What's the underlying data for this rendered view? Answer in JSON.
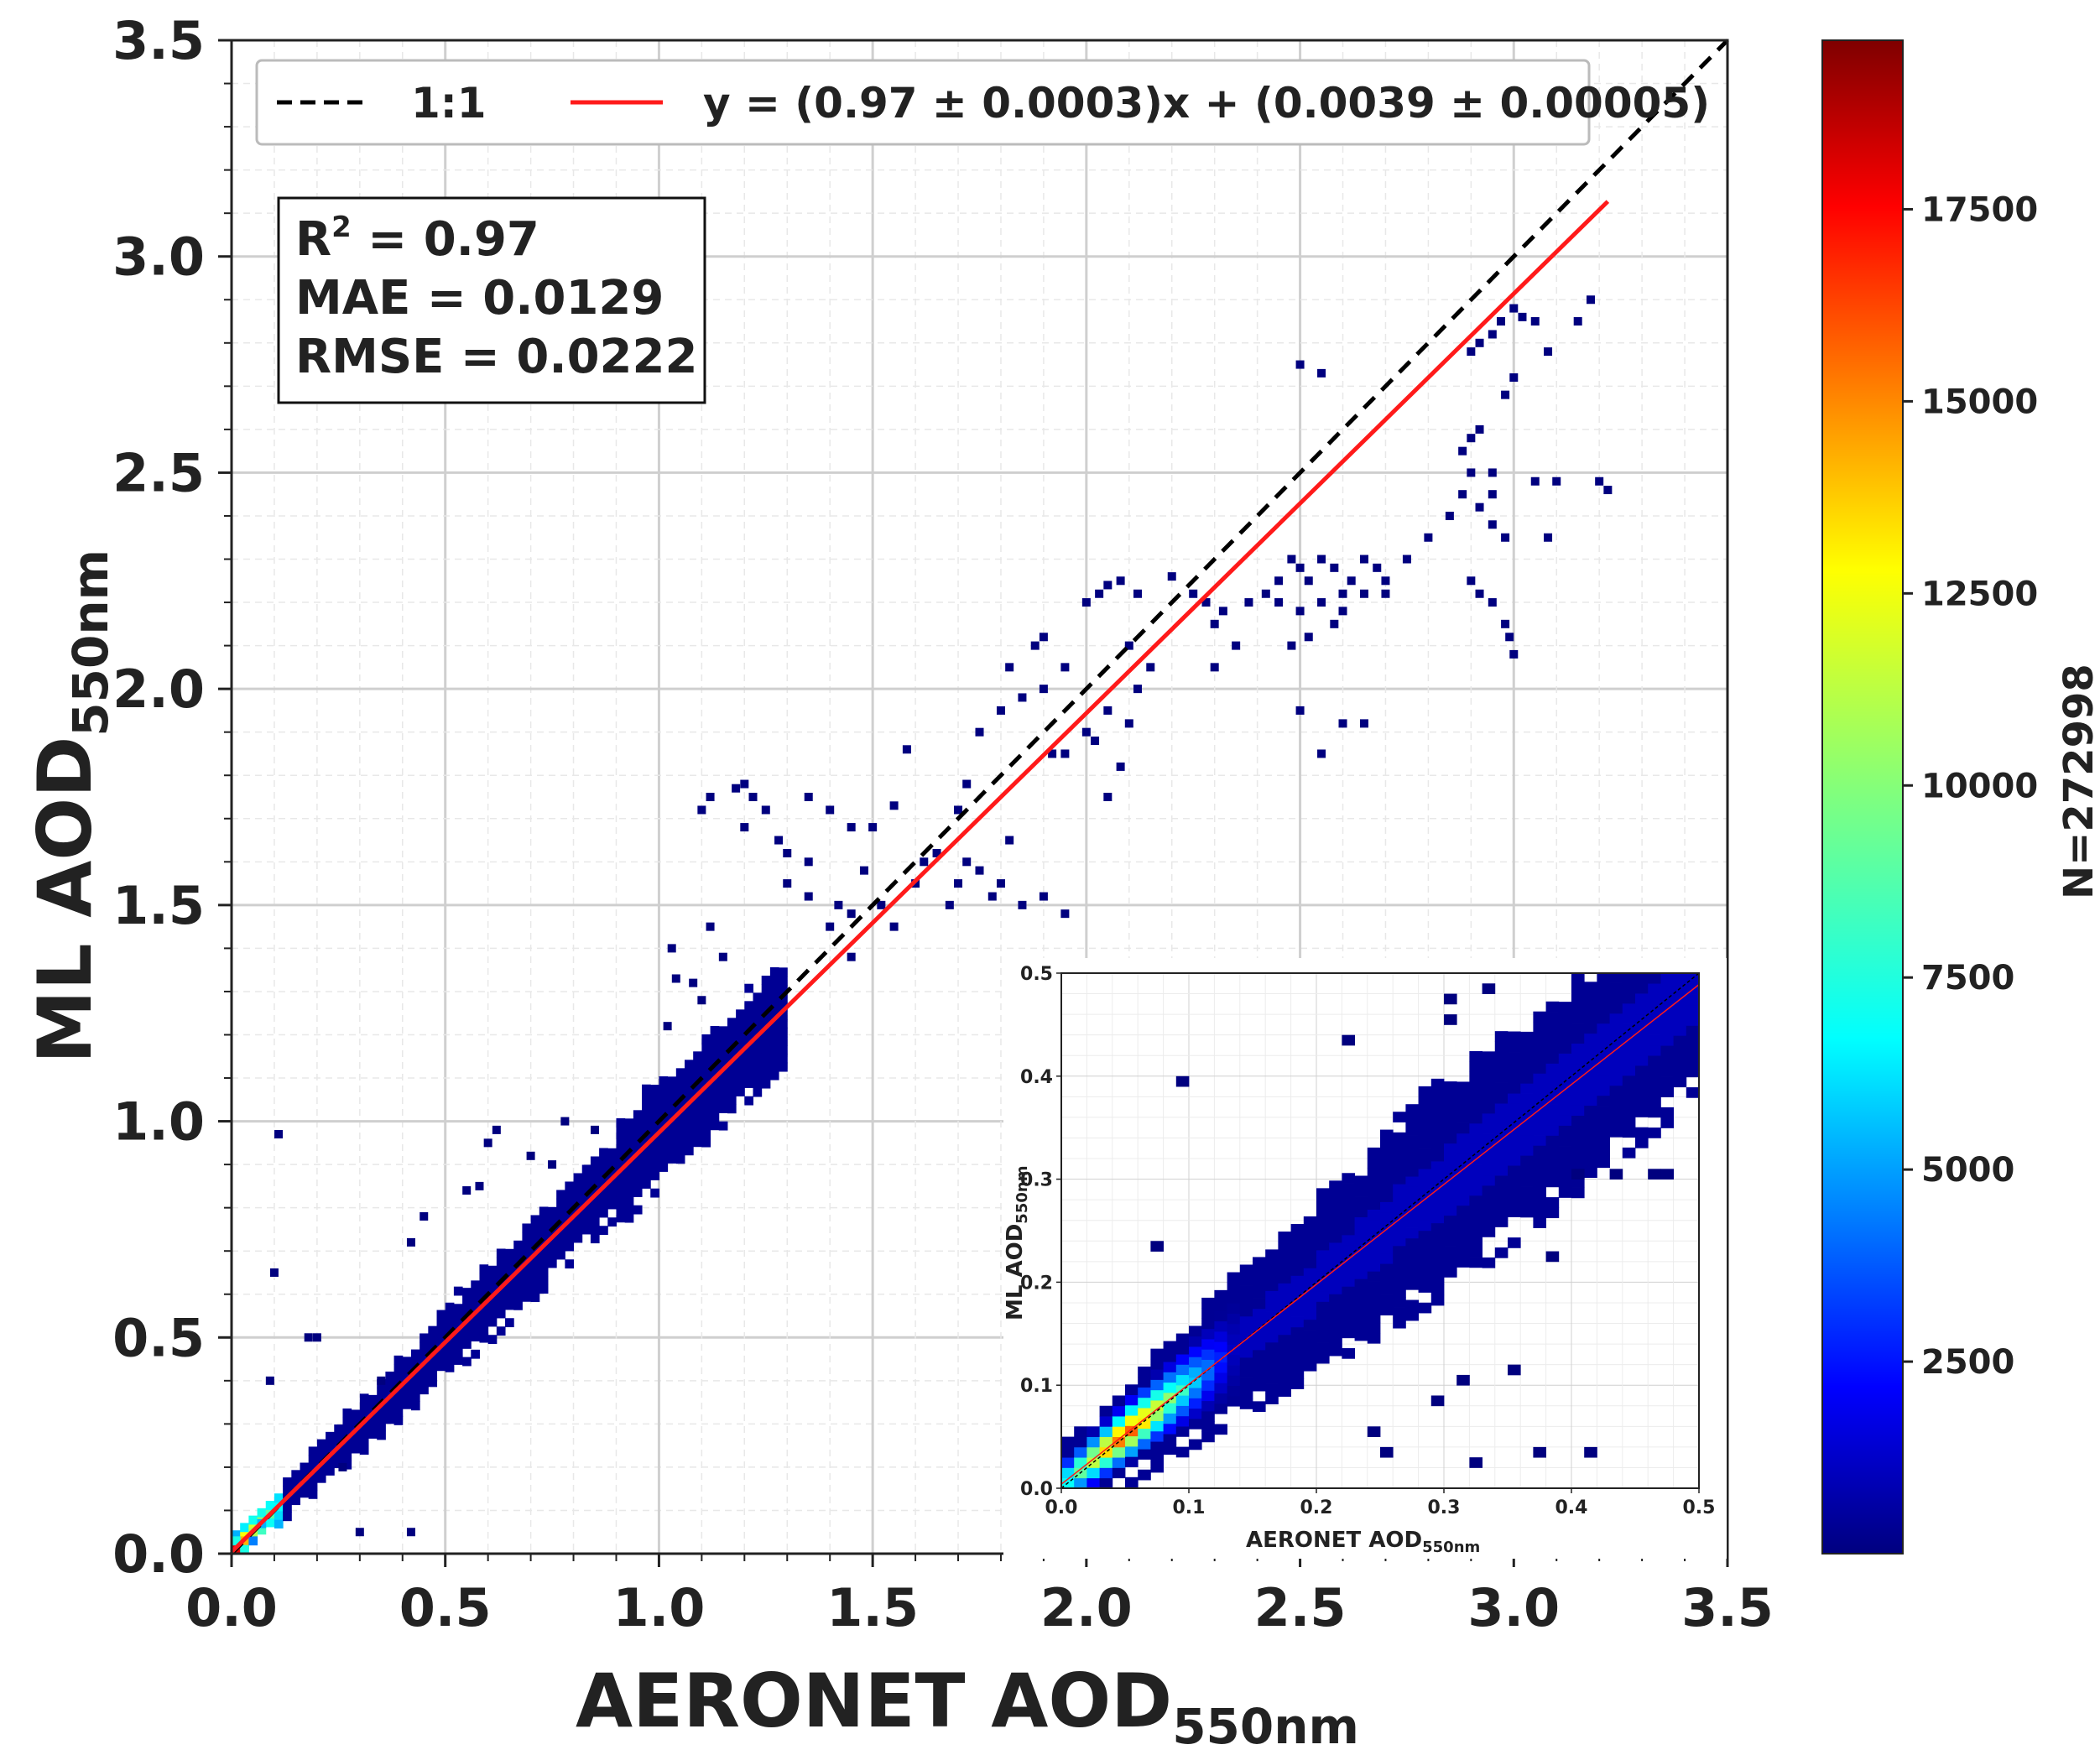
{
  "chart_data": {
    "type": "heatmap",
    "subtype": "2d-density-scatter",
    "xlabel": "AERONET AOD",
    "xlabel_sub": "550nm",
    "ylabel": "ML AOD",
    "ylabel_sub": "550nm",
    "xlim": [
      0.0,
      3.5
    ],
    "ylim": [
      0.0,
      3.5
    ],
    "x_ticks": [
      "0.0",
      "0.5",
      "1.0",
      "1.5",
      "2.0",
      "2.5",
      "3.0",
      "3.5"
    ],
    "y_ticks": [
      "0.0",
      "0.5",
      "1.0",
      "1.5",
      "2.0",
      "2.5",
      "3.0",
      "3.5"
    ],
    "grid": true,
    "legend": {
      "placement": "top",
      "entries": [
        {
          "label": "1:1",
          "style": "dashed",
          "color": "#000000"
        },
        {
          "label": "y = (0.97 ± 0.0003)x + (0.0039 ± 0.00005)",
          "style": "solid",
          "color": "#ff0000"
        }
      ]
    },
    "stats": {
      "r2_label": "R",
      "r2_sup": "2",
      "r2_value": " = 0.97",
      "mae": "MAE = 0.0129",
      "rmse": "RMSE = 0.0222"
    },
    "one_to_one": {
      "x": [
        0.0,
        3.5
      ],
      "y": [
        0.0,
        3.5
      ]
    },
    "fit_line": {
      "slope": 0.97,
      "intercept": 0.0039,
      "x_range": [
        0.0,
        3.22
      ]
    },
    "colorbar": {
      "label": "N=272998",
      "min": 0,
      "max": 19700,
      "ticks": [
        "2500",
        "5000",
        "7500",
        "10000",
        "12500",
        "15000",
        "17500"
      ],
      "colormap": "jet"
    },
    "scatter_points": [
      [
        0.11,
        0.97
      ],
      [
        0.1,
        0.65
      ],
      [
        0.09,
        0.4
      ],
      [
        0.18,
        0.5
      ],
      [
        0.2,
        0.5
      ],
      [
        0.35,
        0.4
      ],
      [
        0.42,
        0.05
      ],
      [
        0.3,
        0.05
      ],
      [
        0.26,
        0.2
      ],
      [
        0.55,
        0.84
      ],
      [
        0.58,
        0.85
      ],
      [
        0.6,
        0.95
      ],
      [
        0.62,
        0.98
      ],
      [
        0.7,
        0.92
      ],
      [
        0.75,
        0.9
      ],
      [
        0.78,
        1.0
      ],
      [
        0.85,
        0.98
      ],
      [
        0.45,
        0.78
      ],
      [
        0.42,
        0.72
      ],
      [
        1.02,
        1.22
      ],
      [
        1.03,
        1.4
      ],
      [
        1.04,
        1.33
      ],
      [
        1.1,
        1.28
      ],
      [
        1.12,
        1.45
      ],
      [
        1.15,
        1.38
      ],
      [
        1.08,
        1.32
      ],
      [
        1.1,
        1.72
      ],
      [
        1.12,
        1.75
      ],
      [
        1.18,
        1.77
      ],
      [
        1.2,
        1.78
      ],
      [
        1.22,
        1.75
      ],
      [
        1.25,
        1.72
      ],
      [
        1.2,
        1.68
      ],
      [
        1.28,
        1.65
      ],
      [
        1.3,
        1.62
      ],
      [
        1.35,
        1.75
      ],
      [
        1.4,
        1.72
      ],
      [
        1.45,
        1.68
      ],
      [
        1.5,
        1.68
      ],
      [
        1.55,
        1.73
      ],
      [
        1.58,
        1.86
      ],
      [
        1.3,
        1.55
      ],
      [
        1.35,
        1.52
      ],
      [
        1.4,
        1.45
      ],
      [
        1.45,
        1.48
      ],
      [
        1.48,
        1.58
      ],
      [
        1.52,
        1.5
      ],
      [
        1.55,
        1.45
      ],
      [
        1.45,
        1.38
      ],
      [
        1.42,
        1.5
      ],
      [
        1.35,
        1.6
      ],
      [
        1.6,
        1.55
      ],
      [
        1.62,
        1.6
      ],
      [
        1.65,
        1.62
      ],
      [
        1.7,
        1.55
      ],
      [
        1.68,
        1.5
      ],
      [
        1.72,
        1.6
      ],
      [
        1.75,
        1.58
      ],
      [
        1.78,
        1.52
      ],
      [
        1.8,
        1.55
      ],
      [
        1.82,
        1.65
      ],
      [
        1.85,
        1.5
      ],
      [
        1.9,
        1.52
      ],
      [
        1.95,
        1.48
      ],
      [
        1.7,
        1.72
      ],
      [
        1.72,
        1.78
      ],
      [
        1.75,
        1.9
      ],
      [
        1.8,
        1.95
      ],
      [
        1.85,
        1.98
      ],
      [
        1.9,
        2.0
      ],
      [
        1.92,
        1.85
      ],
      [
        1.95,
        2.05
      ],
      [
        1.9,
        2.12
      ],
      [
        1.88,
        2.1
      ],
      [
        1.82,
        2.05
      ],
      [
        1.95,
        1.85
      ],
      [
        2.0,
        1.9
      ],
      [
        2.02,
        1.88
      ],
      [
        2.05,
        1.95
      ],
      [
        2.08,
        1.82
      ],
      [
        2.05,
        1.75
      ],
      [
        2.1,
        1.92
      ],
      [
        2.12,
        2.0
      ],
      [
        2.15,
        2.05
      ],
      [
        2.1,
        2.1
      ],
      [
        2.0,
        2.2
      ],
      [
        2.03,
        2.22
      ],
      [
        2.05,
        2.24
      ],
      [
        2.08,
        2.25
      ],
      [
        2.12,
        2.22
      ],
      [
        2.2,
        2.26
      ],
      [
        2.25,
        2.22
      ],
      [
        2.28,
        2.2
      ],
      [
        2.3,
        2.15
      ],
      [
        2.35,
        2.1
      ],
      [
        2.3,
        2.05
      ],
      [
        2.32,
        2.18
      ],
      [
        2.38,
        2.2
      ],
      [
        2.42,
        2.22
      ],
      [
        2.45,
        2.25
      ],
      [
        2.48,
        2.3
      ],
      [
        2.5,
        2.28
      ],
      [
        2.52,
        2.25
      ],
      [
        2.55,
        2.3
      ],
      [
        2.58,
        2.28
      ],
      [
        2.6,
        2.22
      ],
      [
        2.62,
        2.25
      ],
      [
        2.65,
        2.3
      ],
      [
        2.68,
        2.28
      ],
      [
        2.7,
        2.25
      ],
      [
        2.45,
        2.2
      ],
      [
        2.5,
        2.18
      ],
      [
        2.55,
        2.2
      ],
      [
        2.6,
        2.18
      ],
      [
        2.65,
        2.22
      ],
      [
        2.58,
        2.15
      ],
      [
        2.52,
        2.12
      ],
      [
        2.48,
        2.1
      ],
      [
        2.7,
        2.22
      ],
      [
        2.75,
        2.3
      ],
      [
        2.8,
        2.35
      ],
      [
        2.85,
        2.4
      ],
      [
        2.88,
        2.45
      ],
      [
        2.9,
        2.5
      ],
      [
        2.92,
        2.42
      ],
      [
        2.95,
        2.38
      ],
      [
        2.98,
        2.35
      ],
      [
        2.95,
        2.45
      ],
      [
        2.9,
        2.58
      ],
      [
        2.92,
        2.6
      ],
      [
        2.88,
        2.55
      ],
      [
        2.95,
        2.5
      ],
      [
        3.05,
        2.48
      ],
      [
        3.1,
        2.48
      ],
      [
        3.08,
        2.35
      ],
      [
        3.2,
        2.48
      ],
      [
        3.22,
        2.46
      ],
      [
        2.5,
        2.75
      ],
      [
        2.55,
        2.73
      ],
      [
        2.9,
        2.78
      ],
      [
        2.92,
        2.8
      ],
      [
        2.95,
        2.82
      ],
      [
        2.97,
        2.85
      ],
      [
        3.0,
        2.88
      ],
      [
        3.02,
        2.86
      ],
      [
        3.05,
        2.85
      ],
      [
        3.08,
        2.78
      ],
      [
        3.0,
        2.72
      ],
      [
        2.98,
        2.68
      ],
      [
        3.15,
        2.85
      ],
      [
        3.18,
        2.9
      ],
      [
        2.9,
        2.25
      ],
      [
        2.92,
        2.22
      ],
      [
        2.95,
        2.2
      ],
      [
        2.98,
        2.15
      ],
      [
        2.99,
        2.12
      ],
      [
        3.0,
        2.08
      ],
      [
        2.5,
        1.95
      ],
      [
        2.6,
        1.92
      ],
      [
        2.65,
        1.92
      ],
      [
        2.55,
        1.85
      ]
    ],
    "inset": {
      "type": "heatmap",
      "xlabel": "AERONET AOD",
      "xlabel_sub": "550nm",
      "ylabel": "ML AOD",
      "ylabel_sub": "550nm",
      "xlim": [
        0.0,
        0.5
      ],
      "ylim": [
        0.0,
        0.5
      ],
      "x_ticks": [
        "0.0",
        "0.1",
        "0.2",
        "0.3",
        "0.4",
        "0.5"
      ],
      "y_ticks": [
        "0.0",
        "0.1",
        "0.2",
        "0.3",
        "0.4",
        "0.5"
      ],
      "stray_points": [
        [
          0.09,
          0.39
        ],
        [
          0.07,
          0.23
        ],
        [
          0.19,
          0.5
        ],
        [
          0.2,
          0.5
        ],
        [
          0.3,
          0.47
        ],
        [
          0.3,
          0.45
        ],
        [
          0.33,
          0.48
        ],
        [
          0.22,
          0.43
        ],
        [
          0.4,
          0.3
        ],
        [
          0.46,
          0.3
        ],
        [
          0.43,
          0.3
        ],
        [
          0.47,
          0.3
        ],
        [
          0.38,
          0.22
        ],
        [
          0.37,
          0.03
        ],
        [
          0.41,
          0.03
        ],
        [
          0.32,
          0.02
        ],
        [
          0.25,
          0.03
        ],
        [
          0.24,
          0.05
        ],
        [
          0.29,
          0.08
        ],
        [
          0.31,
          0.1
        ],
        [
          0.35,
          0.11
        ]
      ]
    }
  }
}
